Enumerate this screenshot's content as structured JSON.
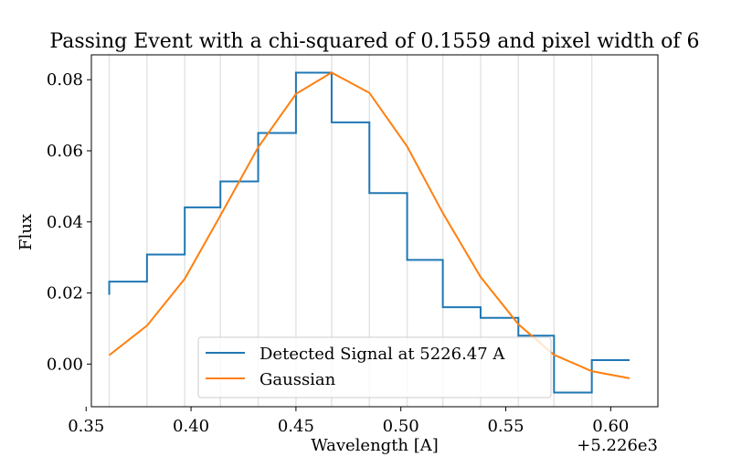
{
  "chart_data": {
    "type": "line",
    "title": "Passing Event with a chi-squared of 0.1559 and pixel width of 6",
    "xlabel": "Wavelength [A]",
    "ylabel": "Flux",
    "x_offset_label": "+5.226e3",
    "xlim": [
      0.3525,
      0.6225
    ],
    "ylim": [
      -0.012,
      0.087
    ],
    "x_ticks": [
      0.35,
      0.4,
      0.45,
      0.5,
      0.55,
      0.6
    ],
    "x_tick_labels": [
      "0.35",
      "0.40",
      "0.45",
      "0.50",
      "0.55",
      "0.60"
    ],
    "y_ticks": [
      0.0,
      0.02,
      0.04,
      0.06,
      0.08
    ],
    "y_tick_labels": [
      "0.00",
      "0.02",
      "0.04",
      "0.06",
      "0.08"
    ],
    "vlines": [
      0.361,
      0.379,
      0.397,
      0.414,
      0.432,
      0.45,
      0.467,
      0.485,
      0.503,
      0.52,
      0.538,
      0.556,
      0.573,
      0.591
    ],
    "series": [
      {
        "name": "Detected Signal at 5226.47 A",
        "style": "step",
        "color": "#1f77b4",
        "x": [
          0.361,
          0.379,
          0.397,
          0.414,
          0.432,
          0.45,
          0.467,
          0.485,
          0.503,
          0.52,
          0.538,
          0.556,
          0.573,
          0.591,
          0.609
        ],
        "values": [
          0.0195,
          0.0232,
          0.0308,
          0.0441,
          0.0514,
          0.065,
          0.082,
          0.068,
          0.0481,
          0.0293,
          0.016,
          0.013,
          0.008,
          -0.008,
          0.0011
        ],
        "step_levels": [
          0.0232,
          0.0308,
          0.0441,
          0.0514,
          0.065,
          0.082,
          0.068,
          0.0481,
          0.0293,
          0.016,
          0.013,
          0.008,
          -0.008,
          0.0011
        ]
      },
      {
        "name": "Gaussian",
        "style": "line",
        "color": "#ff7f0e",
        "x": [
          0.361,
          0.379,
          0.397,
          0.414,
          0.432,
          0.45,
          0.467,
          0.485,
          0.503,
          0.52,
          0.538,
          0.556,
          0.573,
          0.591,
          0.609
        ],
        "values": [
          0.0025,
          0.0108,
          0.024,
          0.0418,
          0.061,
          0.076,
          0.082,
          0.0763,
          0.0612,
          0.0425,
          0.0245,
          0.0112,
          0.0026,
          -0.002,
          -0.004
        ]
      }
    ],
    "legend": {
      "placement": "lower-center"
    }
  }
}
